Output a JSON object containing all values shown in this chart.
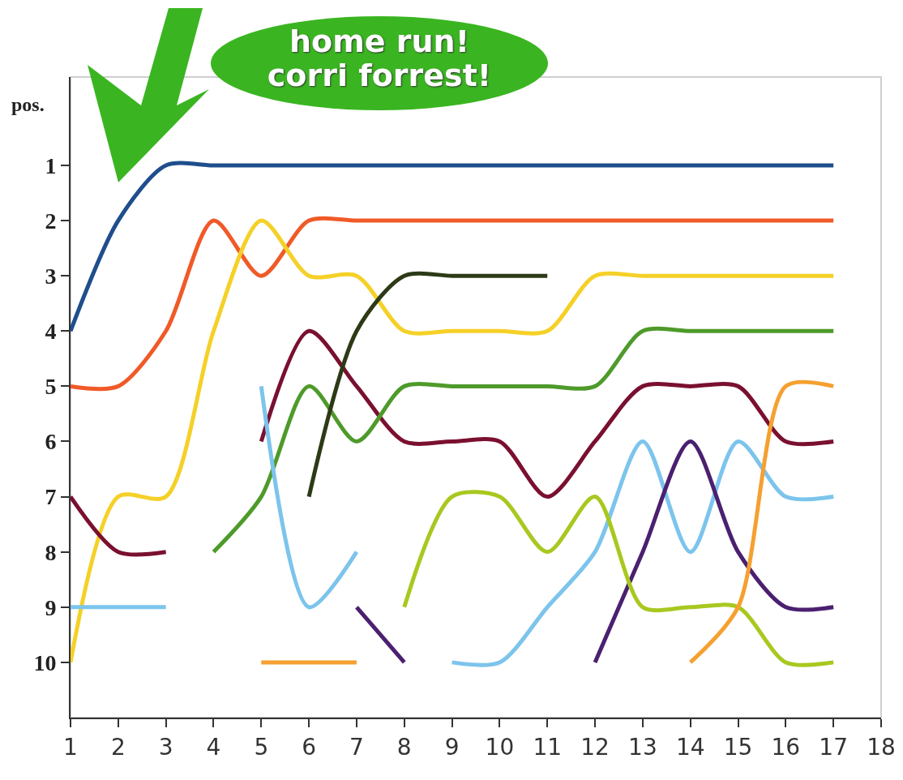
{
  "chart_data": {
    "type": "line",
    "ylabel": "pos.",
    "x": [
      1,
      2,
      3,
      4,
      5,
      6,
      7,
      8,
      9,
      10,
      11,
      12,
      13,
      14,
      15,
      16,
      17
    ],
    "series": [
      {
        "color": "#1f4e8c",
        "values": [
          4,
          2,
          1,
          1,
          1,
          1,
          1,
          1,
          1,
          1,
          1,
          1,
          1,
          1,
          1,
          1,
          1
        ]
      },
      {
        "color": "#f05a28",
        "values": [
          5,
          5,
          4,
          2,
          3,
          2,
          2,
          2,
          2,
          2,
          2,
          2,
          2,
          2,
          2,
          2,
          2
        ]
      },
      {
        "color": "#f5d027",
        "values": [
          10,
          7,
          7,
          4,
          2,
          3,
          3,
          4,
          4,
          4,
          4,
          3,
          3,
          3,
          3,
          3,
          3
        ]
      },
      {
        "color": "#7a1030",
        "values": [
          7,
          8,
          8,
          null,
          6,
          4,
          5,
          6,
          6,
          6,
          7,
          6,
          5,
          5,
          5,
          6,
          6
        ]
      },
      {
        "color": "#4e9a2a",
        "values": [
          null,
          null,
          null,
          8,
          7,
          5,
          6,
          5,
          5,
          5,
          5,
          5,
          4,
          4,
          4,
          4,
          4
        ]
      },
      {
        "color": "#2d3a16",
        "values": [
          null,
          null,
          null,
          null,
          null,
          7,
          4,
          3,
          3,
          3,
          3,
          null,
          null,
          null,
          null,
          null,
          null
        ]
      },
      {
        "color": "#7cc4ec",
        "values": [
          9,
          9,
          9,
          null,
          5,
          9,
          8,
          null,
          10,
          10,
          9,
          8,
          6,
          8,
          6,
          7,
          7
        ]
      },
      {
        "color": "#4b2070",
        "values": [
          null,
          null,
          null,
          null,
          null,
          null,
          9,
          10,
          null,
          null,
          null,
          10,
          8,
          6,
          8,
          9,
          9
        ]
      },
      {
        "color": "#a8c820",
        "values": [
          null,
          null,
          null,
          null,
          null,
          null,
          null,
          9,
          7,
          7,
          8,
          7,
          9,
          9,
          9,
          10,
          10
        ]
      },
      {
        "color": "#f5a030",
        "values": [
          null,
          null,
          null,
          null,
          10,
          10,
          10,
          null,
          null,
          null,
          null,
          null,
          null,
          10,
          9,
          5,
          5
        ]
      }
    ],
    "xlim": [
      1,
      18
    ],
    "xticks": [
      1,
      2,
      3,
      4,
      5,
      6,
      7,
      8,
      9,
      10,
      11,
      12,
      13,
      14,
      15,
      16,
      17,
      18
    ],
    "ylim": [
      11,
      -0.6
    ],
    "yticks": [
      1,
      2,
      3,
      4,
      5,
      6,
      7,
      8,
      9,
      10
    ],
    "grid": false,
    "marker": "none",
    "line_style": "solid",
    "annotations": [
      "home run!\ncorri forrest!"
    ]
  }
}
